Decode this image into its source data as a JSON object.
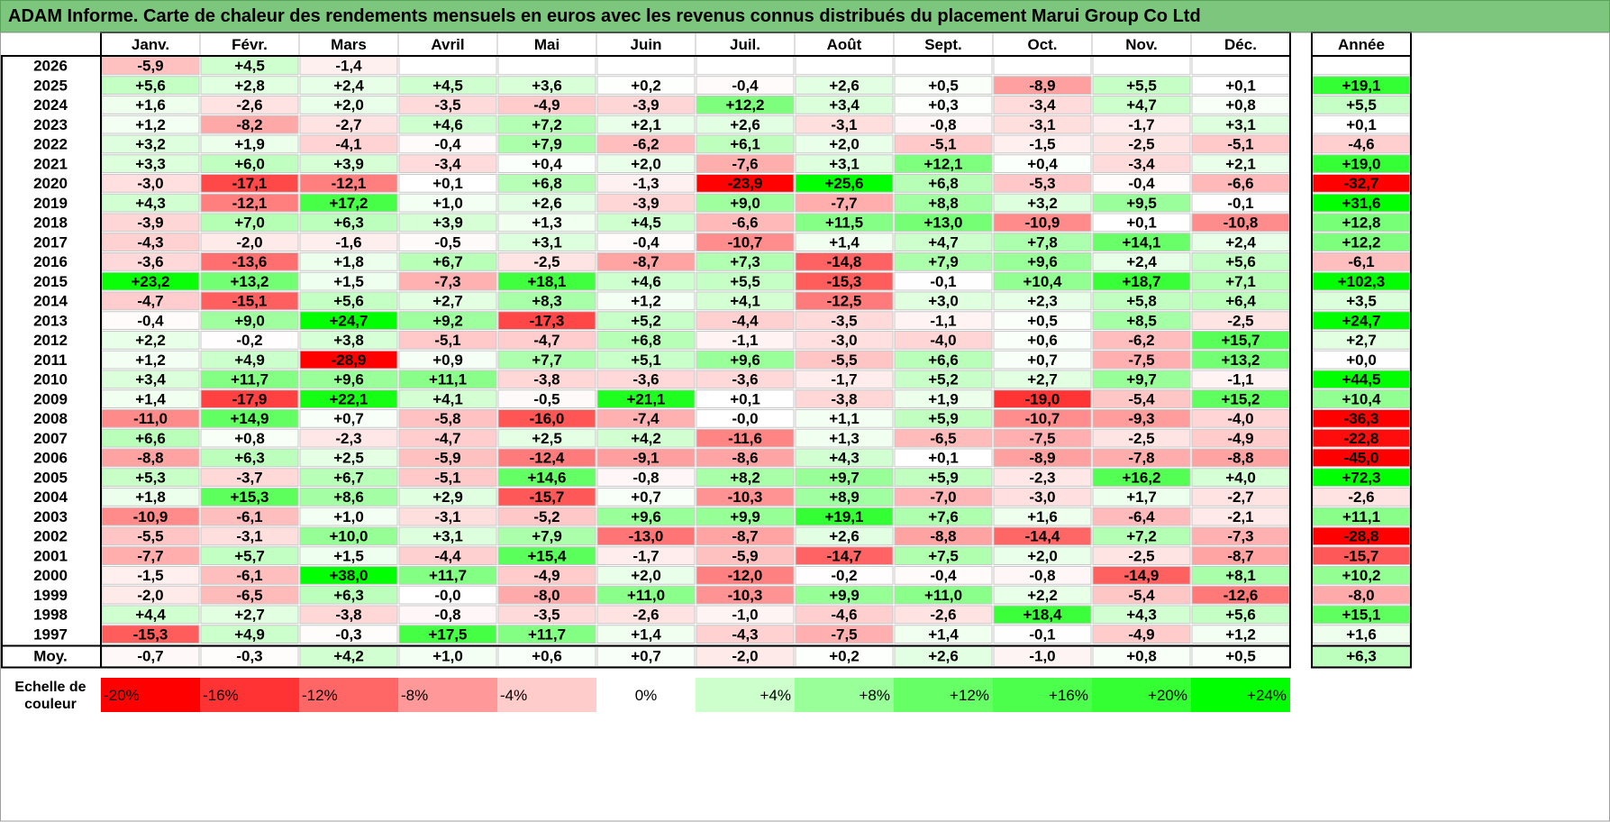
{
  "title": "ADAM Informe. Carte de chaleur des rendements mensuels en euros avec les revenus connus distribués du placement Marui Group Co Ltd",
  "chart_data": {
    "type": "heatmap",
    "title": "ADAM Informe. Carte de chaleur des rendements mensuels en euros avec les revenus connus distribués du placement Marui Group Co Ltd",
    "months": [
      "Janv.",
      "Févr.",
      "Mars",
      "Avril",
      "Mai",
      "Juin",
      "Juil.",
      "Août",
      "Sept.",
      "Oct.",
      "Nov.",
      "Déc."
    ],
    "year_header": "Année",
    "avg_label": "Moy.",
    "rows": [
      {
        "year": "2026",
        "values": [
          "-5,9",
          "+4,5",
          "-1,4",
          "",
          "",
          "",
          "",
          "",
          "",
          "",
          "",
          ""
        ],
        "annual": ""
      },
      {
        "year": "2025",
        "values": [
          "+5,6",
          "+2,8",
          "+2,4",
          "+4,5",
          "+3,6",
          "+0,2",
          "-0,4",
          "+2,6",
          "+0,5",
          "-8,9",
          "+5,5",
          "+0,1"
        ],
        "annual": "+19,1"
      },
      {
        "year": "2024",
        "values": [
          "+1,6",
          "-2,6",
          "+2,0",
          "-3,5",
          "-4,9",
          "-3,9",
          "+12,2",
          "+3,4",
          "+0,3",
          "-3,4",
          "+4,7",
          "+0,8"
        ],
        "annual": "+5,5"
      },
      {
        "year": "2023",
        "values": [
          "+1,2",
          "-8,2",
          "-2,7",
          "+4,6",
          "+7,2",
          "+2,1",
          "+2,6",
          "-3,1",
          "-0,8",
          "-3,1",
          "-1,7",
          "+3,1"
        ],
        "annual": "+0,1"
      },
      {
        "year": "2022",
        "values": [
          "+3,2",
          "+1,9",
          "-4,1",
          "-0,4",
          "+7,9",
          "-6,2",
          "+6,1",
          "+2,0",
          "-5,1",
          "-1,5",
          "-2,5",
          "-5,1"
        ],
        "annual": "-4,6"
      },
      {
        "year": "2021",
        "values": [
          "+3,3",
          "+6,0",
          "+3,9",
          "-3,4",
          "+0,4",
          "+2,0",
          "-7,6",
          "+3,1",
          "+12,1",
          "+0,4",
          "-3,4",
          "+2,1"
        ],
        "annual": "+19,0"
      },
      {
        "year": "2020",
        "values": [
          "-3,0",
          "-17,1",
          "-12,1",
          "+0,1",
          "+6,8",
          "-1,3",
          "-23,9",
          "+25,6",
          "+6,8",
          "-5,3",
          "-0,4",
          "-6,6"
        ],
        "annual": "-32,7"
      },
      {
        "year": "2019",
        "values": [
          "+4,3",
          "-12,1",
          "+17,2",
          "+1,0",
          "+2,6",
          "-3,9",
          "+9,0",
          "-7,7",
          "+8,8",
          "+3,2",
          "+9,5",
          "-0,1"
        ],
        "annual": "+31,6"
      },
      {
        "year": "2018",
        "values": [
          "-3,9",
          "+7,0",
          "+6,3",
          "+3,9",
          "+1,3",
          "+4,5",
          "-6,6",
          "+11,5",
          "+13,0",
          "-10,9",
          "+0,1",
          "-10,8"
        ],
        "annual": "+12,8"
      },
      {
        "year": "2017",
        "values": [
          "-4,3",
          "-2,0",
          "-1,6",
          "-0,5",
          "+3,1",
          "-0,4",
          "-10,7",
          "+1,4",
          "+4,7",
          "+7,8",
          "+14,1",
          "+2,4"
        ],
        "annual": "+12,2"
      },
      {
        "year": "2016",
        "values": [
          "-3,6",
          "-13,6",
          "+1,8",
          "+6,7",
          "-2,5",
          "-8,7",
          "+7,3",
          "-14,8",
          "+7,9",
          "+9,6",
          "+2,4",
          "+5,6"
        ],
        "annual": "-6,1"
      },
      {
        "year": "2015",
        "values": [
          "+23,2",
          "+13,2",
          "+1,5",
          "-7,3",
          "+18,1",
          "+4,6",
          "+5,5",
          "-15,3",
          "-0,1",
          "+10,4",
          "+18,7",
          "+7,1"
        ],
        "annual": "+102,3"
      },
      {
        "year": "2014",
        "values": [
          "-4,7",
          "-15,1",
          "+5,6",
          "+2,7",
          "+8,3",
          "+1,2",
          "+4,1",
          "-12,5",
          "+3,0",
          "+2,3",
          "+5,8",
          "+6,4"
        ],
        "annual": "+3,5"
      },
      {
        "year": "2013",
        "values": [
          "-0,4",
          "+9,0",
          "+24,7",
          "+9,2",
          "-17,3",
          "+5,2",
          "-4,4",
          "-3,5",
          "-1,1",
          "+0,5",
          "+8,5",
          "-2,5"
        ],
        "annual": "+24,7"
      },
      {
        "year": "2012",
        "values": [
          "+2,2",
          "-0,2",
          "+3,8",
          "-5,1",
          "-4,7",
          "+6,8",
          "-1,1",
          "-3,0",
          "-4,0",
          "+0,6",
          "-6,2",
          "+15,7"
        ],
        "annual": "+2,7"
      },
      {
        "year": "2011",
        "values": [
          "+1,2",
          "+4,9",
          "-28,9",
          "+0,9",
          "+7,7",
          "+5,1",
          "+9,6",
          "-5,5",
          "+6,6",
          "+0,7",
          "-7,5",
          "+13,2"
        ],
        "annual": "+0,0"
      },
      {
        "year": "2010",
        "values": [
          "+3,4",
          "+11,7",
          "+9,6",
          "+11,1",
          "-3,8",
          "-3,6",
          "-3,6",
          "-1,7",
          "+5,2",
          "+2,7",
          "+9,7",
          "-1,1"
        ],
        "annual": "+44,5"
      },
      {
        "year": "2009",
        "values": [
          "+1,4",
          "-17,9",
          "+22,1",
          "+4,1",
          "-0,5",
          "+21,1",
          "+0,1",
          "-3,8",
          "+1,9",
          "-19,0",
          "-5,4",
          "+15,2"
        ],
        "annual": "+10,4"
      },
      {
        "year": "2008",
        "values": [
          "-11,0",
          "+14,9",
          "+0,7",
          "-5,8",
          "-16,0",
          "-7,4",
          "-0,0",
          "+1,1",
          "+5,9",
          "-10,7",
          "-9,3",
          "-4,0"
        ],
        "annual": "-36,3"
      },
      {
        "year": "2007",
        "values": [
          "+6,6",
          "+0,8",
          "-2,3",
          "-4,7",
          "+2,5",
          "+4,2",
          "-11,6",
          "+1,3",
          "-6,5",
          "-7,5",
          "-2,5",
          "-4,9"
        ],
        "annual": "-22,8"
      },
      {
        "year": "2006",
        "values": [
          "-8,8",
          "+6,3",
          "+2,5",
          "-5,9",
          "-12,4",
          "-9,1",
          "-8,6",
          "+4,3",
          "+0,1",
          "-8,9",
          "-7,8",
          "-8,8"
        ],
        "annual": "-45,0"
      },
      {
        "year": "2005",
        "values": [
          "+5,3",
          "-3,7",
          "+6,7",
          "-5,1",
          "+14,6",
          "-0,8",
          "+8,2",
          "+9,7",
          "+5,9",
          "-2,3",
          "+16,2",
          "+4,0"
        ],
        "annual": "+72,3"
      },
      {
        "year": "2004",
        "values": [
          "+1,8",
          "+15,3",
          "+8,6",
          "+2,9",
          "-15,7",
          "+0,7",
          "-10,3",
          "+8,9",
          "-7,0",
          "-3,0",
          "+1,7",
          "-2,7"
        ],
        "annual": "-2,6"
      },
      {
        "year": "2003",
        "values": [
          "-10,9",
          "-6,1",
          "+1,0",
          "-3,1",
          "-5,2",
          "+9,6",
          "+9,9",
          "+19,1",
          "+7,6",
          "+1,6",
          "-6,4",
          "-2,1"
        ],
        "annual": "+11,1"
      },
      {
        "year": "2002",
        "values": [
          "-5,5",
          "-3,1",
          "+10,0",
          "+3,1",
          "+7,9",
          "-13,0",
          "-8,7",
          "+2,6",
          "-8,8",
          "-14,4",
          "+7,2",
          "-7,3"
        ],
        "annual": "-28,8"
      },
      {
        "year": "2001",
        "values": [
          "-7,7",
          "+5,7",
          "+1,5",
          "-4,4",
          "+15,4",
          "-1,7",
          "-5,9",
          "-14,7",
          "+7,5",
          "+2,0",
          "-2,5",
          "-8,7"
        ],
        "annual": "-15,7"
      },
      {
        "year": "2000",
        "values": [
          "-1,5",
          "-6,1",
          "+38,0",
          "+11,7",
          "-4,9",
          "+2,0",
          "-12,0",
          "-0,2",
          "-0,4",
          "-0,8",
          "-14,9",
          "+8,1"
        ],
        "annual": "+10,2"
      },
      {
        "year": "1999",
        "values": [
          "-2,0",
          "-6,5",
          "+6,3",
          "-0,0",
          "-8,0",
          "+11,0",
          "-10,3",
          "+9,9",
          "+11,0",
          "+2,2",
          "-5,4",
          "-12,6"
        ],
        "annual": "-8,0"
      },
      {
        "year": "1998",
        "values": [
          "+4,4",
          "+2,7",
          "-3,8",
          "-0,8",
          "-3,5",
          "-2,6",
          "-1,0",
          "-4,6",
          "-2,6",
          "+18,4",
          "+4,3",
          "+5,6"
        ],
        "annual": "+15,1"
      },
      {
        "year": "1997",
        "values": [
          "-15,3",
          "+4,9",
          "-0,3",
          "+17,5",
          "+11,7",
          "+1,4",
          "-4,3",
          "-7,5",
          "+1,4",
          "-0,1",
          "-4,9",
          "+1,2"
        ],
        "annual": "+1,6"
      }
    ],
    "averages": {
      "values": [
        "-0,7",
        "-0,3",
        "+4,2",
        "+1,0",
        "+0,6",
        "+0,7",
        "-2,0",
        "+0,2",
        "+2,6",
        "-1,0",
        "+0,8",
        "+0,5"
      ],
      "annual": "+6,3"
    },
    "scale": {
      "label_line1": "Echelle de",
      "label_line2": "couleur",
      "steps": [
        {
          "label": "-20%",
          "value": -20,
          "color": "#ff0000"
        },
        {
          "label": "-16%",
          "value": -16,
          "color": "#ff3333"
        },
        {
          "label": "-12%",
          "value": -12,
          "color": "#ff6666"
        },
        {
          "label": "-8%",
          "value": -8,
          "color": "#ff9999"
        },
        {
          "label": "-4%",
          "value": -4,
          "color": "#ffcccc"
        },
        {
          "label": "0%",
          "value": 0,
          "color": "#ffffff"
        },
        {
          "label": "+4%",
          "value": 4,
          "color": "#ccffcc"
        },
        {
          "label": "+8%",
          "value": 8,
          "color": "#99ff99"
        },
        {
          "label": "+12%",
          "value": 12,
          "color": "#66ff66"
        },
        {
          "label": "+16%",
          "value": 16,
          "color": "#4dff4d"
        },
        {
          "label": "+20%",
          "value": 20,
          "color": "#33ff33"
        },
        {
          "label": "+24%",
          "value": 24,
          "color": "#00ff00"
        }
      ]
    }
  }
}
